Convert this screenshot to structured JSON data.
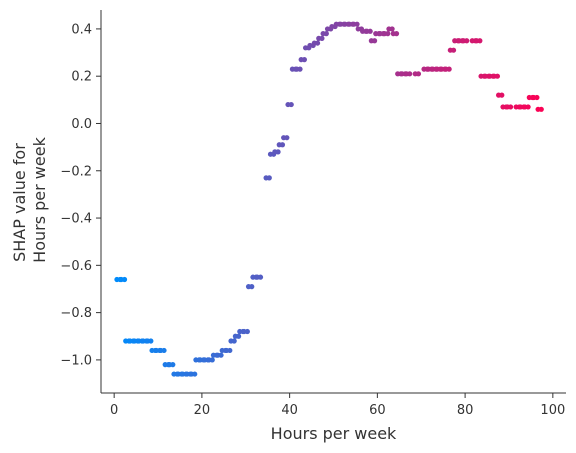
{
  "chart_data": {
    "type": "scatter",
    "title": "",
    "xlabel": "Hours per week",
    "ylabel_lines": [
      "SHAP value for",
      "Hours per week"
    ],
    "xlim": [
      -3,
      103
    ],
    "ylim": [
      -1.14,
      0.48
    ],
    "xticks": [
      0,
      20,
      40,
      60,
      80,
      100
    ],
    "yticks": [
      0.4,
      0.2,
      0.0,
      -0.2,
      -0.4,
      -0.6,
      -0.8,
      -1.0
    ],
    "ytick_labels": [
      "0.4",
      "0.2",
      "0.0",
      "−0.2",
      "−0.4",
      "−0.6",
      "−0.8",
      "−1.0"
    ],
    "grid": false,
    "color_scale": {
      "low": "#008bfb",
      "high": "#ff0052",
      "range": [
        1,
        99
      ]
    },
    "points": [
      {
        "x": 1,
        "y": -0.66
      },
      {
        "x": 2,
        "y": -0.66
      },
      {
        "x": 3,
        "y": -0.92
      },
      {
        "x": 4,
        "y": -0.92
      },
      {
        "x": 5,
        "y": -0.92
      },
      {
        "x": 6,
        "y": -0.92
      },
      {
        "x": 7,
        "y": -0.92
      },
      {
        "x": 8,
        "y": -0.92
      },
      {
        "x": 9,
        "y": -0.96
      },
      {
        "x": 10,
        "y": -0.96
      },
      {
        "x": 11,
        "y": -0.96
      },
      {
        "x": 12,
        "y": -1.02
      },
      {
        "x": 13,
        "y": -1.02
      },
      {
        "x": 14,
        "y": -1.06
      },
      {
        "x": 15,
        "y": -1.06
      },
      {
        "x": 16,
        "y": -1.06
      },
      {
        "x": 17,
        "y": -1.06
      },
      {
        "x": 18,
        "y": -1.06
      },
      {
        "x": 19,
        "y": -1.0
      },
      {
        "x": 20,
        "y": -1.0
      },
      {
        "x": 21,
        "y": -1.0
      },
      {
        "x": 22,
        "y": -1.0
      },
      {
        "x": 23,
        "y": -0.98
      },
      {
        "x": 24,
        "y": -0.98
      },
      {
        "x": 25,
        "y": -0.96
      },
      {
        "x": 26,
        "y": -0.96
      },
      {
        "x": 27,
        "y": -0.92
      },
      {
        "x": 28,
        "y": -0.9
      },
      {
        "x": 29,
        "y": -0.88
      },
      {
        "x": 30,
        "y": -0.88
      },
      {
        "x": 31,
        "y": -0.69
      },
      {
        "x": 32,
        "y": -0.65
      },
      {
        "x": 33,
        "y": -0.65
      },
      {
        "x": 35,
        "y": -0.23
      },
      {
        "x": 36,
        "y": -0.13
      },
      {
        "x": 37,
        "y": -0.12
      },
      {
        "x": 38,
        "y": -0.09
      },
      {
        "x": 39,
        "y": -0.06
      },
      {
        "x": 40,
        "y": 0.08
      },
      {
        "x": 41,
        "y": 0.23
      },
      {
        "x": 42,
        "y": 0.23
      },
      {
        "x": 43,
        "y": 0.27
      },
      {
        "x": 44,
        "y": 0.32
      },
      {
        "x": 45,
        "y": 0.33
      },
      {
        "x": 46,
        "y": 0.34
      },
      {
        "x": 47,
        "y": 0.36
      },
      {
        "x": 48,
        "y": 0.38
      },
      {
        "x": 49,
        "y": 0.4
      },
      {
        "x": 50,
        "y": 0.41
      },
      {
        "x": 51,
        "y": 0.42
      },
      {
        "x": 52,
        "y": 0.42
      },
      {
        "x": 53,
        "y": 0.42
      },
      {
        "x": 54,
        "y": 0.42
      },
      {
        "x": 55,
        "y": 0.42
      },
      {
        "x": 56,
        "y": 0.4
      },
      {
        "x": 57,
        "y": 0.39
      },
      {
        "x": 58,
        "y": 0.39
      },
      {
        "x": 59,
        "y": 0.35
      },
      {
        "x": 60,
        "y": 0.38
      },
      {
        "x": 61,
        "y": 0.38
      },
      {
        "x": 62,
        "y": 0.38
      },
      {
        "x": 63,
        "y": 0.4
      },
      {
        "x": 64,
        "y": 0.38
      },
      {
        "x": 65,
        "y": 0.21
      },
      {
        "x": 66,
        "y": 0.21
      },
      {
        "x": 67,
        "y": 0.21
      },
      {
        "x": 69,
        "y": 0.21
      },
      {
        "x": 71,
        "y": 0.23
      },
      {
        "x": 72,
        "y": 0.23
      },
      {
        "x": 73,
        "y": 0.23
      },
      {
        "x": 74,
        "y": 0.23
      },
      {
        "x": 75,
        "y": 0.23
      },
      {
        "x": 76,
        "y": 0.23
      },
      {
        "x": 77,
        "y": 0.31
      },
      {
        "x": 78,
        "y": 0.35
      },
      {
        "x": 79,
        "y": 0.35
      },
      {
        "x": 80,
        "y": 0.35
      },
      {
        "x": 82,
        "y": 0.35
      },
      {
        "x": 83,
        "y": 0.35
      },
      {
        "x": 84,
        "y": 0.2
      },
      {
        "x": 85,
        "y": 0.2
      },
      {
        "x": 86,
        "y": 0.2
      },
      {
        "x": 87,
        "y": 0.2
      },
      {
        "x": 88,
        "y": 0.12
      },
      {
        "x": 89,
        "y": 0.07
      },
      {
        "x": 90,
        "y": 0.07
      },
      {
        "x": 92,
        "y": 0.07
      },
      {
        "x": 93,
        "y": 0.07
      },
      {
        "x": 94,
        "y": 0.07
      },
      {
        "x": 95,
        "y": 0.11
      },
      {
        "x": 96,
        "y": 0.11
      },
      {
        "x": 97,
        "y": 0.06
      }
    ]
  }
}
